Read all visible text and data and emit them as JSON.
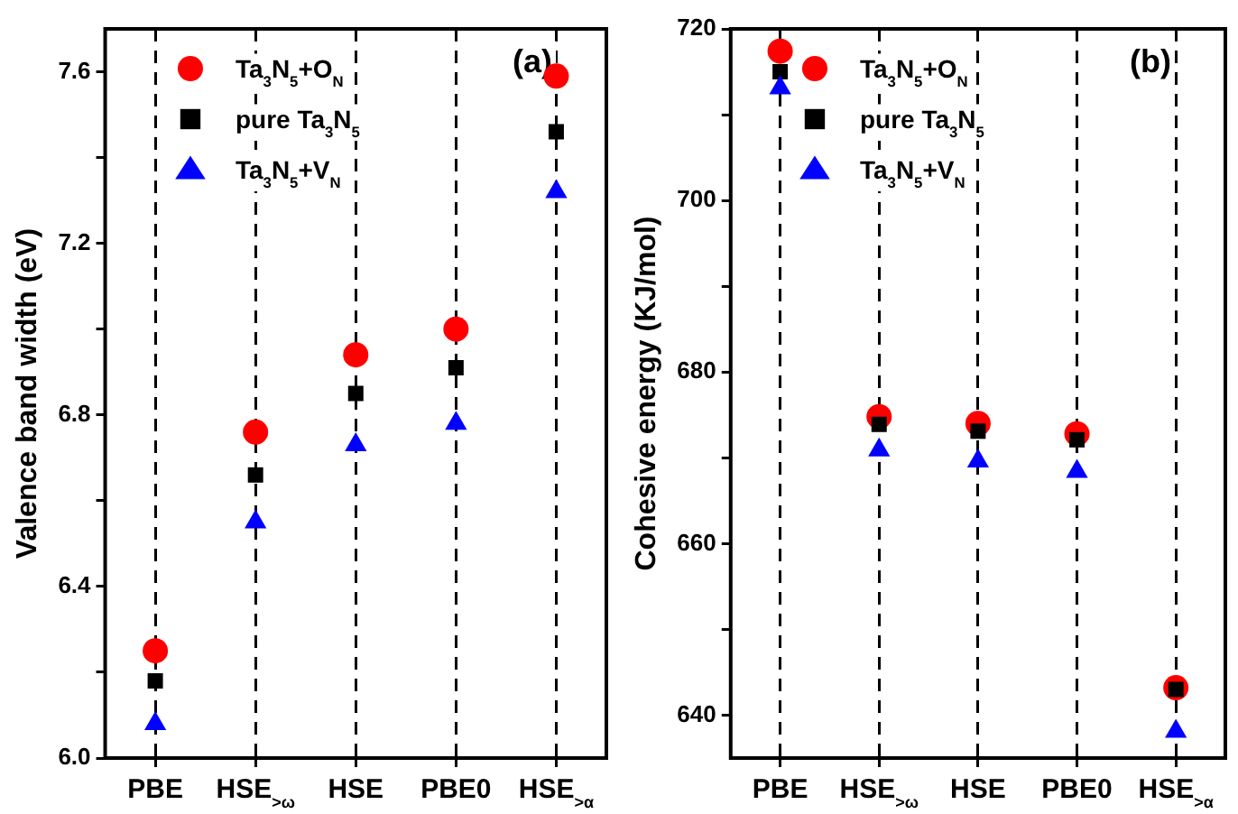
{
  "chart_data": [
    {
      "type": "scatter",
      "ylabel": "Valence band width (eV)",
      "categories": [
        "PBE",
        "HSE$_{>ω}$",
        "HSE",
        "PBE0",
        "HSE$_{>α}$"
      ],
      "series": [
        {
          "name": "Ta$_{3}$N$_{5}$+O$_{N}$",
          "color": "#ff0000",
          "marker": "circle",
          "values": [
            6.25,
            6.76,
            6.94,
            7.0,
            7.59
          ]
        },
        {
          "name": "pure Ta$_{3}$N$_{5}$",
          "color": "#000000",
          "marker": "square",
          "values": [
            6.18,
            6.66,
            6.85,
            6.91,
            7.46
          ]
        },
        {
          "name": "Ta$_{3}$N$_{5}$+V$_{N}$",
          "color": "#0000ff",
          "marker": "triangle",
          "values": [
            6.08,
            6.55,
            6.73,
            6.78,
            7.32
          ]
        }
      ],
      "ylim": [
        6.0,
        7.7
      ],
      "yticks": [
        {
          "value": 6.0,
          "label": "6.0"
        },
        {
          "value": 6.2,
          "label": null
        },
        6.4,
        {
          "value": 6.6,
          "label": null
        },
        6.8,
        {
          "value": 7.0,
          "label": null
        },
        7.2,
        {
          "value": 7.4,
          "label": null
        },
        7.6
      ],
      "grid": "x",
      "legend": "top",
      "annotations": [
        "(a)"
      ]
    },
    {
      "type": "scatter",
      "ylabel": "Cohesive energy (KJ/mol)",
      "categories": [
        "PBE",
        "HSE$_{>ω}$",
        "HSE",
        "PBE0",
        "HSE$_{>α}$"
      ],
      "series": [
        {
          "name": "Ta$_{3}$N$_{5}$+O$_{N}$",
          "color": "#ff0000",
          "marker": "circle",
          "values": [
            717.4,
            674.8,
            674.0,
            672.8,
            643.2
          ]
        },
        {
          "name": "pure Ta$_{3}$N$_{5}$",
          "color": "#000000",
          "marker": "square",
          "values": [
            715.0,
            673.9,
            673.1,
            672.1,
            643.0
          ]
        },
        {
          "name": "Ta$_{3}$N$_{5}$+V$_{N}$",
          "color": "#0000ff",
          "marker": "triangle",
          "values": [
            713.1,
            670.9,
            669.6,
            668.4,
            638.1
          ]
        }
      ],
      "ylim": [
        635,
        720
      ],
      "yticks": [
        640,
        {
          "value": 650,
          "label": null
        },
        660,
        {
          "value": 670,
          "label": null
        },
        680,
        {
          "value": 690,
          "label": null
        },
        700,
        {
          "value": 710,
          "label": null
        },
        720
      ],
      "grid": "x",
      "legend": "top",
      "annotations": [
        "(b)"
      ]
    }
  ]
}
